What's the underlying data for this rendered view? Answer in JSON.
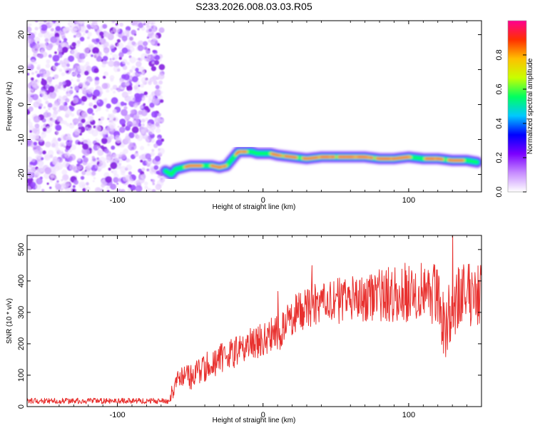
{
  "figure_title": "S233.2026.008.03.03.R05",
  "chart_data": [
    {
      "type": "heatmap",
      "name": "spectrogram",
      "xlabel": "Height of straight line (km)",
      "ylabel": "Frequency (Hz)",
      "xlim": [
        -162,
        150
      ],
      "ylim": [
        -25,
        24
      ],
      "x_ticks": [
        -100,
        0,
        100
      ],
      "x_tick_labels": [
        "-100",
        "0",
        "100"
      ],
      "y_ticks": [
        20,
        10,
        0,
        -10,
        -20
      ],
      "y_tick_labels": [
        "20",
        "10",
        "0",
        "-10",
        "-20"
      ],
      "noise_region_x": [
        -162,
        -69
      ],
      "ridge": {
        "x": [
          -67,
          -63,
          -60,
          -55,
          -50,
          -45,
          -40,
          -35,
          -30,
          -25,
          -20,
          -17,
          -12,
          -8,
          -4,
          0,
          5,
          10,
          20,
          30,
          40,
          50,
          60,
          70,
          80,
          90,
          100,
          110,
          120,
          130,
          140,
          147
        ],
        "y": [
          -19,
          -20,
          -18.5,
          -18,
          -17.5,
          -17.5,
          -17.5,
          -17.5,
          -18,
          -17.5,
          -15,
          -13.5,
          -13.5,
          -13.5,
          -14,
          -14,
          -14,
          -14.5,
          -15,
          -15.5,
          -15,
          -15,
          -15,
          -15,
          -15.5,
          -15.5,
          -15,
          -15.5,
          -15.5,
          -16,
          -16,
          -16.5
        ]
      },
      "colorbar": {
        "label": "Normalized spectral amplitude",
        "range": [
          0.0,
          1.0
        ],
        "ticks": [
          0.0,
          0.2,
          0.4,
          0.6,
          0.8
        ],
        "tick_labels": [
          "0.0",
          "0.2",
          "0.4",
          "0.6",
          "0.8"
        ],
        "colors": [
          "#ffffff",
          "#c78cff",
          "#7b00ff",
          "#0000ff",
          "#00c8ff",
          "#00ff60",
          "#c8ff00",
          "#ffc000",
          "#ff3000",
          "#ff0090"
        ]
      }
    },
    {
      "type": "line",
      "name": "snr",
      "xlabel": "Height of straight line (km)",
      "ylabel": "SNR (10 * v/v)",
      "xlim": [
        -162,
        150
      ],
      "ylim": [
        0,
        545
      ],
      "x_ticks": [
        -100,
        0,
        100
      ],
      "x_tick_labels": [
        "-100",
        "0",
        "100"
      ],
      "y_ticks": [
        0,
        100,
        200,
        300,
        400,
        500
      ],
      "y_tick_labels": [
        "0",
        "100",
        "200",
        "300",
        "400",
        "500"
      ],
      "color": "#e8312f",
      "trend": {
        "x": [
          -162,
          -100,
          -65,
          -60,
          -50,
          -40,
          -30,
          -20,
          -10,
          0,
          10,
          15,
          20,
          30,
          40,
          50,
          60,
          70,
          80,
          90,
          100,
          110,
          120,
          125,
          130,
          140,
          150
        ],
        "y": [
          18,
          18,
          18,
          75,
          95,
          125,
          150,
          170,
          195,
          215,
          235,
          255,
          290,
          315,
          330,
          335,
          345,
          350,
          355,
          360,
          365,
          370,
          360,
          245,
          330,
          355,
          370
        ]
      },
      "amplitude": {
        "x": [
          -162,
          -65,
          -60,
          0,
          20,
          60,
          100,
          150
        ],
        "y": [
          9,
          9,
          40,
          55,
          65,
          75,
          95,
          110
        ]
      }
    }
  ]
}
